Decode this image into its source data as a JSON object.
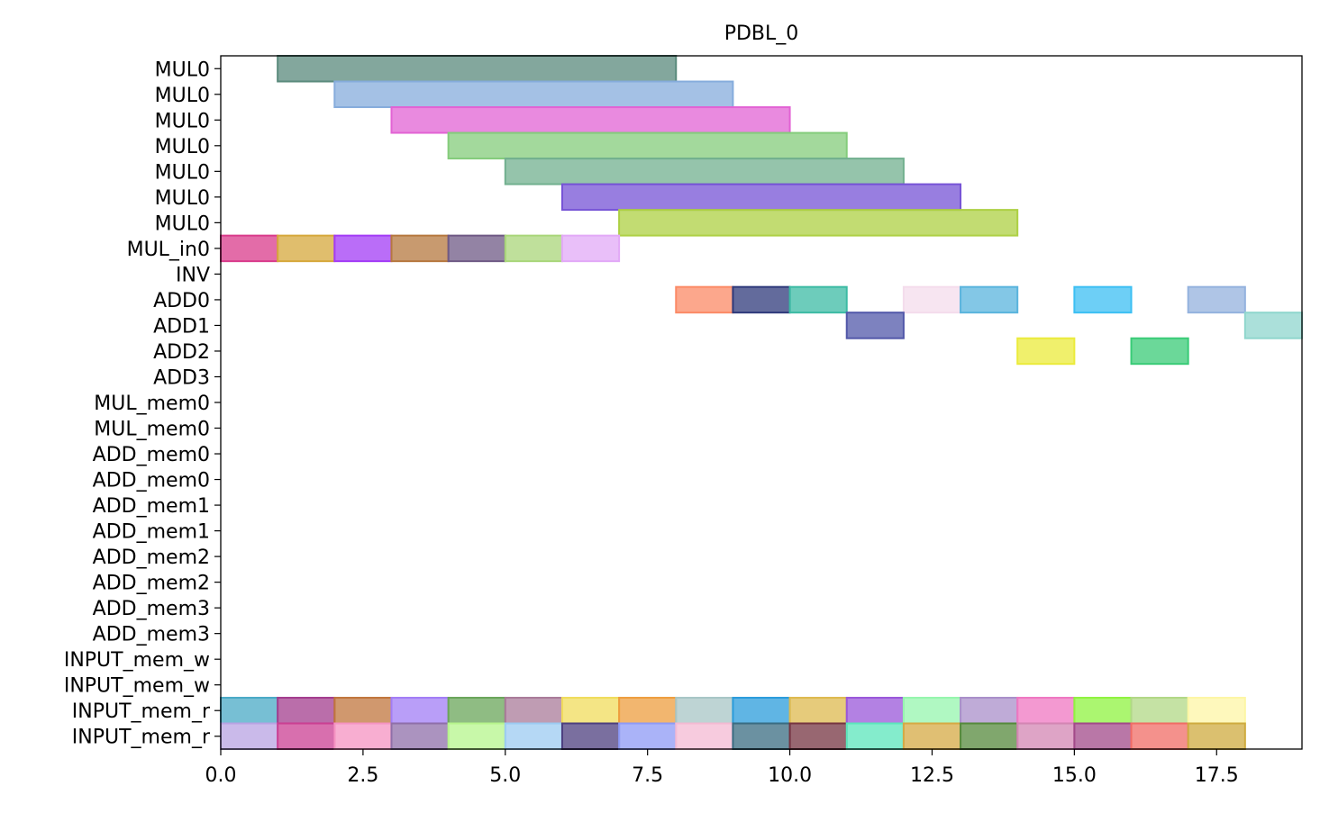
{
  "chart_data": {
    "type": "gantt",
    "title": "PDBL_0",
    "xlabel": "",
    "ylabel": "",
    "xlim": [
      0,
      19
    ],
    "x_ticks": [
      0,
      2.5,
      5,
      7.5,
      10,
      12.5,
      15,
      17.5
    ],
    "x_tick_labels": [
      "0.0",
      "2.5",
      "5.0",
      "7.5",
      "10.0",
      "12.5",
      "15.0",
      "17.5"
    ],
    "rows": [
      "MUL0",
      "MUL0",
      "MUL0",
      "MUL0",
      "MUL0",
      "MUL0",
      "MUL0",
      "MUL_in0",
      "INV",
      "ADD0",
      "ADD1",
      "ADD2",
      "ADD3",
      "MUL_mem0",
      "MUL_mem0",
      "ADD_mem0",
      "ADD_mem0",
      "ADD_mem1",
      "ADD_mem1",
      "ADD_mem2",
      "ADD_mem2",
      "ADD_mem3",
      "ADD_mem3",
      "INPUT_mem_w",
      "INPUT_mem_w",
      "INPUT_mem_r",
      "INPUT_mem_r"
    ],
    "grid": false,
    "legend": "none",
    "bars": [
      {
        "row": 0,
        "start": 1,
        "end": 8,
        "color": "#5a8a7c"
      },
      {
        "row": 1,
        "start": 2,
        "end": 9,
        "color": "#86acdc"
      },
      {
        "row": 2,
        "start": 3,
        "end": 10,
        "color": "#e263d4"
      },
      {
        "row": 3,
        "start": 4,
        "end": 11,
        "color": "#84cc7b"
      },
      {
        "row": 4,
        "start": 5,
        "end": 12,
        "color": "#72b08f"
      },
      {
        "row": 5,
        "start": 6,
        "end": 13,
        "color": "#7653d6"
      },
      {
        "row": 6,
        "start": 7,
        "end": 14,
        "color": "#add043"
      },
      {
        "row": 7,
        "start": 0,
        "end": 1,
        "color": "#d93b8b"
      },
      {
        "row": 7,
        "start": 1,
        "end": 2,
        "color": "#d6a83c"
      },
      {
        "row": 7,
        "start": 2,
        "end": 3,
        "color": "#a33cf6"
      },
      {
        "row": 7,
        "start": 3,
        "end": 4,
        "color": "#b6783f"
      },
      {
        "row": 7,
        "start": 4,
        "end": 5,
        "color": "#6f5a85"
      },
      {
        "row": 7,
        "start": 5,
        "end": 6,
        "color": "#a9d67a"
      },
      {
        "row": 7,
        "start": 6,
        "end": 7,
        "color": "#e2a9f7"
      },
      {
        "row": 9,
        "start": 8,
        "end": 9,
        "color": "#fb8a66"
      },
      {
        "row": 9,
        "start": 9,
        "end": 10,
        "color": "#2f3a7b"
      },
      {
        "row": 9,
        "start": 10,
        "end": 11,
        "color": "#3cbba4"
      },
      {
        "row": 9,
        "start": 12,
        "end": 13,
        "color": "#f4dcec"
      },
      {
        "row": 9,
        "start": 13,
        "end": 14,
        "color": "#5ab4dd"
      },
      {
        "row": 9,
        "start": 15,
        "end": 16,
        "color": "#3cbff3"
      },
      {
        "row": 9,
        "start": 17,
        "end": 18,
        "color": "#94b2de"
      },
      {
        "row": 10,
        "start": 11,
        "end": 12,
        "color": "#5258a9"
      },
      {
        "row": 10,
        "start": 18,
        "end": 19,
        "color": "#8fd6cd"
      },
      {
        "row": 11,
        "start": 14,
        "end": 15,
        "color": "#ebeb3b"
      },
      {
        "row": 11,
        "start": 16,
        "end": 17,
        "color": "#39cb77"
      },
      {
        "row": 25,
        "start": 0,
        "end": 1,
        "color": "#4aaac6"
      },
      {
        "row": 25,
        "start": 1,
        "end": 2,
        "color": "#a33d8e"
      },
      {
        "row": 25,
        "start": 2,
        "end": 3,
        "color": "#c0763d"
      },
      {
        "row": 25,
        "start": 3,
        "end": 4,
        "color": "#a27df6"
      },
      {
        "row": 25,
        "start": 4,
        "end": 5,
        "color": "#6aa55a"
      },
      {
        "row": 25,
        "start": 5,
        "end": 6,
        "color": "#a97b99"
      },
      {
        "row": 25,
        "start": 6,
        "end": 7,
        "color": "#f0dc5c"
      },
      {
        "row": 25,
        "start": 7,
        "end": 8,
        "color": "#ee9e3f"
      },
      {
        "row": 25,
        "start": 8,
        "end": 9,
        "color": "#a8c6c6"
      },
      {
        "row": 25,
        "start": 9,
        "end": 10,
        "color": "#2b9cdb"
      },
      {
        "row": 25,
        "start": 10,
        "end": 11,
        "color": "#deba4f"
      },
      {
        "row": 25,
        "start": 11,
        "end": 12,
        "color": "#9a57da"
      },
      {
        "row": 25,
        "start": 12,
        "end": 13,
        "color": "#95f6ae"
      },
      {
        "row": 25,
        "start": 13,
        "end": 14,
        "color": "#a98fc9"
      },
      {
        "row": 25,
        "start": 14,
        "end": 15,
        "color": "#ef77c1"
      },
      {
        "row": 25,
        "start": 15,
        "end": 16,
        "color": "#8ff340"
      },
      {
        "row": 25,
        "start": 16,
        "end": 17,
        "color": "#b1d886"
      },
      {
        "row": 25,
        "start": 17,
        "end": 18,
        "color": "#fdf6a5"
      },
      {
        "row": 26,
        "start": 0,
        "end": 1,
        "color": "#b8a3e3"
      },
      {
        "row": 26,
        "start": 1,
        "end": 2,
        "color": "#cb3f93"
      },
      {
        "row": 26,
        "start": 2,
        "end": 3,
        "color": "#f593c2"
      },
      {
        "row": 26,
        "start": 3,
        "end": 4,
        "color": "#8f6fa9"
      },
      {
        "row": 26,
        "start": 4,
        "end": 5,
        "color": "#b6f58c"
      },
      {
        "row": 26,
        "start": 5,
        "end": 6,
        "color": "#9ccbf2"
      },
      {
        "row": 26,
        "start": 6,
        "end": 7,
        "color": "#4d3f7f"
      },
      {
        "row": 26,
        "start": 7,
        "end": 8,
        "color": "#8e9af6"
      },
      {
        "row": 26,
        "start": 8,
        "end": 9,
        "color": "#f4bad3"
      },
      {
        "row": 26,
        "start": 9,
        "end": 10,
        "color": "#3a6c82"
      },
      {
        "row": 26,
        "start": 10,
        "end": 11,
        "color": "#763441"
      },
      {
        "row": 26,
        "start": 11,
        "end": 12,
        "color": "#5be6bb"
      },
      {
        "row": 26,
        "start": 12,
        "end": 13,
        "color": "#d6a944"
      },
      {
        "row": 26,
        "start": 13,
        "end": 14,
        "color": "#558a3c"
      },
      {
        "row": 26,
        "start": 14,
        "end": 15,
        "color": "#d386b3"
      },
      {
        "row": 26,
        "start": 15,
        "end": 16,
        "color": "#a24a89"
      },
      {
        "row": 26,
        "start": 16,
        "end": 17,
        "color": "#f06c65"
      },
      {
        "row": 26,
        "start": 17,
        "end": 18,
        "color": "#cfab3f"
      }
    ]
  }
}
